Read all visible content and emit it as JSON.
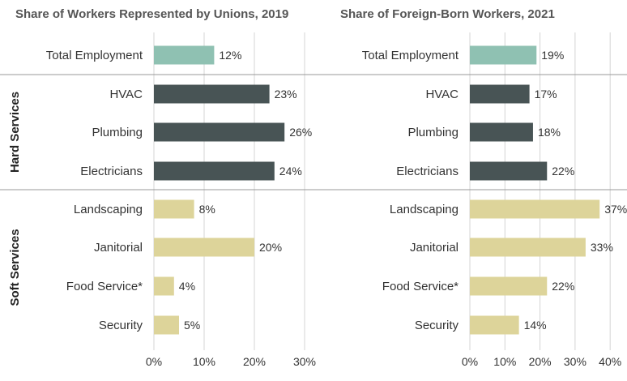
{
  "colors": {
    "total": "#8fc1b2",
    "hard": "#485455",
    "soft": "#ddd49a",
    "grid": "#d4d4d4",
    "divider": "#999999"
  },
  "groups": {
    "hard": "Hard Services",
    "soft": "Soft Services"
  },
  "chart_data": [
    {
      "type": "bar",
      "orientation": "horizontal",
      "title": "Share of Workers Represented by Unions, 2019",
      "categories": [
        "Total Employment",
        "HVAC",
        "Plumbing",
        "Electricians",
        "Landscaping",
        "Janitorial",
        "Food Service*",
        "Security"
      ],
      "category_groups": [
        "total",
        "hard",
        "hard",
        "hard",
        "soft",
        "soft",
        "soft",
        "soft"
      ],
      "values": [
        12,
        23,
        26,
        24,
        8,
        20,
        4,
        5
      ],
      "value_labels": [
        "12%",
        "23%",
        "26%",
        "24%",
        "8%",
        "20%",
        "4%",
        "5%"
      ],
      "xlim": [
        0,
        30
      ],
      "xticks": [
        0,
        10,
        20,
        30
      ],
      "xtick_labels": [
        "0%",
        "10%",
        "20%",
        "30%"
      ],
      "grid": true
    },
    {
      "type": "bar",
      "orientation": "horizontal",
      "title": "Share of Foreign-Born Workers, 2021",
      "categories": [
        "Total Employment",
        "HVAC",
        "Plumbing",
        "Electricians",
        "Landscaping",
        "Janitorial",
        "Food Service*",
        "Security"
      ],
      "category_groups": [
        "total",
        "hard",
        "hard",
        "hard",
        "soft",
        "soft",
        "soft",
        "soft"
      ],
      "values": [
        19,
        17,
        18,
        22,
        37,
        33,
        22,
        14
      ],
      "value_labels": [
        "19%",
        "17%",
        "18%",
        "22%",
        "37%",
        "33%",
        "22%",
        "14%"
      ],
      "xlim": [
        0,
        40
      ],
      "xticks": [
        0,
        10,
        20,
        30,
        40
      ],
      "xtick_labels": [
        "0%",
        "10%",
        "20%",
        "30%",
        "40%"
      ],
      "grid": true
    }
  ]
}
